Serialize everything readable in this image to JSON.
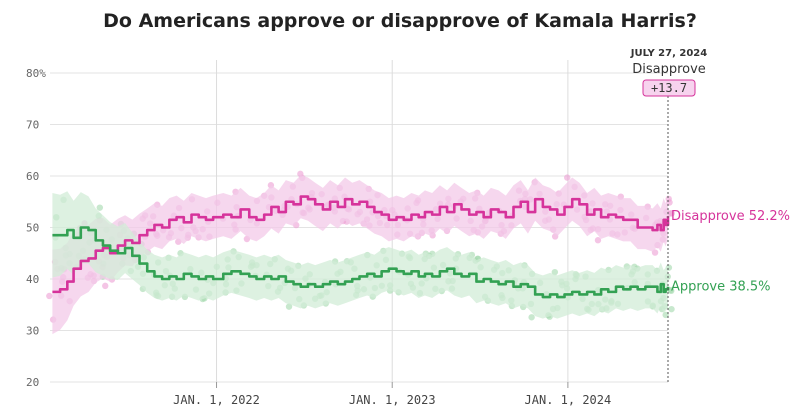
{
  "chart_data": {
    "type": "line",
    "title": "Do Americans approve or disapprove of Kamala Harris?",
    "xlabel": "",
    "ylabel": "",
    "ylim": [
      20,
      80
    ],
    "y_ticks": [
      20,
      30,
      40,
      50,
      60,
      70,
      80
    ],
    "y_tick_labels": [
      "20",
      "30",
      "40",
      "50",
      "60",
      "70",
      "80%"
    ],
    "x_ticks": [
      {
        "date": "2022-01-01",
        "label": "JAN. 1, 2022"
      },
      {
        "date": "2023-01-01",
        "label": "JAN. 1, 2023"
      },
      {
        "date": "2024-01-01",
        "label": "JAN. 1, 2024"
      }
    ],
    "x_range": [
      "2021-01-20",
      "2024-07-27"
    ],
    "grid": true,
    "callout": {
      "date_label": "JULY 27, 2024",
      "series_label": "Disapprove",
      "spread_label": "+13.7"
    },
    "series": [
      {
        "name": "Disapprove",
        "color": "#d6339b",
        "band_color": "#f3c9e8",
        "dot_color": "#ec9fd3",
        "end_label": "Disapprove 52.2%",
        "end_value": 52.2,
        "values": [
          [
            "2021-01-25",
            37.5
          ],
          [
            "2021-02-10",
            38.0
          ],
          [
            "2021-02-25",
            39.5
          ],
          [
            "2021-03-10",
            42.0
          ],
          [
            "2021-03-25",
            43.5
          ],
          [
            "2021-04-10",
            44.0
          ],
          [
            "2021-04-25",
            45.5
          ],
          [
            "2021-05-10",
            46.0
          ],
          [
            "2021-05-25",
            45.0
          ],
          [
            "2021-06-10",
            46.5
          ],
          [
            "2021-06-25",
            47.5
          ],
          [
            "2021-07-10",
            47.0
          ],
          [
            "2021-07-25",
            48.5
          ],
          [
            "2021-08-10",
            49.5
          ],
          [
            "2021-08-25",
            50.5
          ],
          [
            "2021-09-10",
            50.0
          ],
          [
            "2021-09-25",
            51.5
          ],
          [
            "2021-10-10",
            52.0
          ],
          [
            "2021-10-25",
            51.0
          ],
          [
            "2021-11-10",
            52.5
          ],
          [
            "2021-11-25",
            52.0
          ],
          [
            "2021-12-10",
            51.5
          ],
          [
            "2021-12-25",
            52.0
          ],
          [
            "2022-01-15",
            52.5
          ],
          [
            "2022-02-01",
            52.0
          ],
          [
            "2022-02-20",
            53.5
          ],
          [
            "2022-03-10",
            52.0
          ],
          [
            "2022-03-25",
            51.5
          ],
          [
            "2022-04-10",
            52.5
          ],
          [
            "2022-04-25",
            54.0
          ],
          [
            "2022-05-10",
            53.0
          ],
          [
            "2022-05-25",
            55.0
          ],
          [
            "2022-06-10",
            54.5
          ],
          [
            "2022-06-25",
            56.0
          ],
          [
            "2022-07-10",
            55.5
          ],
          [
            "2022-07-25",
            54.5
          ],
          [
            "2022-08-10",
            53.5
          ],
          [
            "2022-08-25",
            55.0
          ],
          [
            "2022-09-10",
            54.0
          ],
          [
            "2022-09-25",
            55.5
          ],
          [
            "2022-10-10",
            54.5
          ],
          [
            "2022-10-25",
            55.0
          ],
          [
            "2022-11-10",
            54.0
          ],
          [
            "2022-11-25",
            53.0
          ],
          [
            "2022-12-10",
            52.5
          ],
          [
            "2022-12-25",
            51.5
          ],
          [
            "2023-01-10",
            52.0
          ],
          [
            "2023-01-25",
            51.5
          ],
          [
            "2023-02-10",
            52.5
          ],
          [
            "2023-02-25",
            52.0
          ],
          [
            "2023-03-10",
            53.0
          ],
          [
            "2023-03-25",
            52.5
          ],
          [
            "2023-04-10",
            54.0
          ],
          [
            "2023-04-25",
            53.0
          ],
          [
            "2023-05-10",
            54.5
          ],
          [
            "2023-05-25",
            53.5
          ],
          [
            "2023-06-10",
            52.5
          ],
          [
            "2023-06-25",
            53.0
          ],
          [
            "2023-07-10",
            52.0
          ],
          [
            "2023-07-25",
            53.5
          ],
          [
            "2023-08-10",
            53.0
          ],
          [
            "2023-08-25",
            52.0
          ],
          [
            "2023-09-10",
            54.0
          ],
          [
            "2023-09-25",
            55.0
          ],
          [
            "2023-10-10",
            53.0
          ],
          [
            "2023-10-25",
            55.5
          ],
          [
            "2023-11-10",
            54.0
          ],
          [
            "2023-11-25",
            53.5
          ],
          [
            "2023-12-10",
            52.5
          ],
          [
            "2023-12-25",
            54.0
          ],
          [
            "2024-01-10",
            55.5
          ],
          [
            "2024-01-25",
            54.5
          ],
          [
            "2024-02-10",
            52.5
          ],
          [
            "2024-02-25",
            53.5
          ],
          [
            "2024-03-10",
            52.0
          ],
          [
            "2024-03-25",
            52.5
          ],
          [
            "2024-04-10",
            52.0
          ],
          [
            "2024-04-25",
            51.5
          ],
          [
            "2024-05-10",
            51.5
          ],
          [
            "2024-05-25",
            50.0
          ],
          [
            "2024-06-10",
            50.0
          ],
          [
            "2024-06-25",
            49.5
          ],
          [
            "2024-07-05",
            50.5
          ],
          [
            "2024-07-12",
            49.5
          ],
          [
            "2024-07-18",
            51.5
          ],
          [
            "2024-07-22",
            50.5
          ],
          [
            "2024-07-27",
            52.2
          ]
        ]
      },
      {
        "name": "Approve",
        "color": "#33a153",
        "band_color": "#d2ecd7",
        "dot_color": "#a3d8ae",
        "end_label": "Approve 38.5%",
        "end_value": 38.5,
        "values": [
          [
            "2021-01-25",
            48.5
          ],
          [
            "2021-02-10",
            48.5
          ],
          [
            "2021-02-25",
            49.5
          ],
          [
            "2021-03-10",
            48.0
          ],
          [
            "2021-03-25",
            50.0
          ],
          [
            "2021-04-10",
            49.5
          ],
          [
            "2021-04-25",
            47.5
          ],
          [
            "2021-05-10",
            46.5
          ],
          [
            "2021-05-25",
            45.5
          ],
          [
            "2021-06-10",
            45.0
          ],
          [
            "2021-06-25",
            46.0
          ],
          [
            "2021-07-10",
            44.5
          ],
          [
            "2021-07-25",
            43.0
          ],
          [
            "2021-08-10",
            41.5
          ],
          [
            "2021-08-25",
            40.5
          ],
          [
            "2021-09-10",
            40.0
          ],
          [
            "2021-09-25",
            40.5
          ],
          [
            "2021-10-10",
            40.0
          ],
          [
            "2021-10-25",
            41.0
          ],
          [
            "2021-11-10",
            40.5
          ],
          [
            "2021-11-25",
            40.0
          ],
          [
            "2021-12-10",
            40.5
          ],
          [
            "2021-12-25",
            40.0
          ],
          [
            "2022-01-15",
            41.0
          ],
          [
            "2022-02-01",
            41.5
          ],
          [
            "2022-02-20",
            41.0
          ],
          [
            "2022-03-10",
            40.5
          ],
          [
            "2022-03-25",
            40.0
          ],
          [
            "2022-04-10",
            40.5
          ],
          [
            "2022-04-25",
            40.0
          ],
          [
            "2022-05-10",
            40.5
          ],
          [
            "2022-05-25",
            39.5
          ],
          [
            "2022-06-10",
            39.0
          ],
          [
            "2022-06-25",
            38.5
          ],
          [
            "2022-07-10",
            39.0
          ],
          [
            "2022-07-25",
            38.5
          ],
          [
            "2022-08-10",
            39.0
          ],
          [
            "2022-08-25",
            39.5
          ],
          [
            "2022-09-10",
            39.0
          ],
          [
            "2022-09-25",
            39.5
          ],
          [
            "2022-10-10",
            40.0
          ],
          [
            "2022-10-25",
            40.5
          ],
          [
            "2022-11-10",
            41.0
          ],
          [
            "2022-11-25",
            40.5
          ],
          [
            "2022-12-10",
            41.5
          ],
          [
            "2022-12-25",
            42.0
          ],
          [
            "2023-01-10",
            41.5
          ],
          [
            "2023-01-25",
            41.0
          ],
          [
            "2023-02-10",
            41.5
          ],
          [
            "2023-02-25",
            40.5
          ],
          [
            "2023-03-10",
            41.0
          ],
          [
            "2023-03-25",
            40.5
          ],
          [
            "2023-04-10",
            41.5
          ],
          [
            "2023-04-25",
            42.0
          ],
          [
            "2023-05-10",
            41.0
          ],
          [
            "2023-05-25",
            40.5
          ],
          [
            "2023-06-10",
            41.0
          ],
          [
            "2023-06-25",
            39.5
          ],
          [
            "2023-07-10",
            40.0
          ],
          [
            "2023-07-25",
            39.5
          ],
          [
            "2023-08-10",
            39.0
          ],
          [
            "2023-08-25",
            39.5
          ],
          [
            "2023-09-10",
            38.5
          ],
          [
            "2023-09-25",
            39.0
          ],
          [
            "2023-10-10",
            38.5
          ],
          [
            "2023-10-25",
            37.0
          ],
          [
            "2023-11-10",
            36.5
          ],
          [
            "2023-11-25",
            37.0
          ],
          [
            "2023-12-10",
            36.5
          ],
          [
            "2023-12-25",
            37.0
          ],
          [
            "2024-01-10",
            37.5
          ],
          [
            "2024-01-25",
            37.0
          ],
          [
            "2024-02-10",
            37.5
          ],
          [
            "2024-02-25",
            37.0
          ],
          [
            "2024-03-10",
            38.0
          ],
          [
            "2024-03-25",
            37.5
          ],
          [
            "2024-04-10",
            38.5
          ],
          [
            "2024-04-25",
            38.0
          ],
          [
            "2024-05-10",
            38.5
          ],
          [
            "2024-05-25",
            38.0
          ],
          [
            "2024-06-10",
            38.5
          ],
          [
            "2024-06-25",
            38.5
          ],
          [
            "2024-07-05",
            37.5
          ],
          [
            "2024-07-12",
            39.0
          ],
          [
            "2024-07-18",
            37.5
          ],
          [
            "2024-07-22",
            38.0
          ],
          [
            "2024-07-27",
            38.5
          ]
        ]
      }
    ]
  }
}
